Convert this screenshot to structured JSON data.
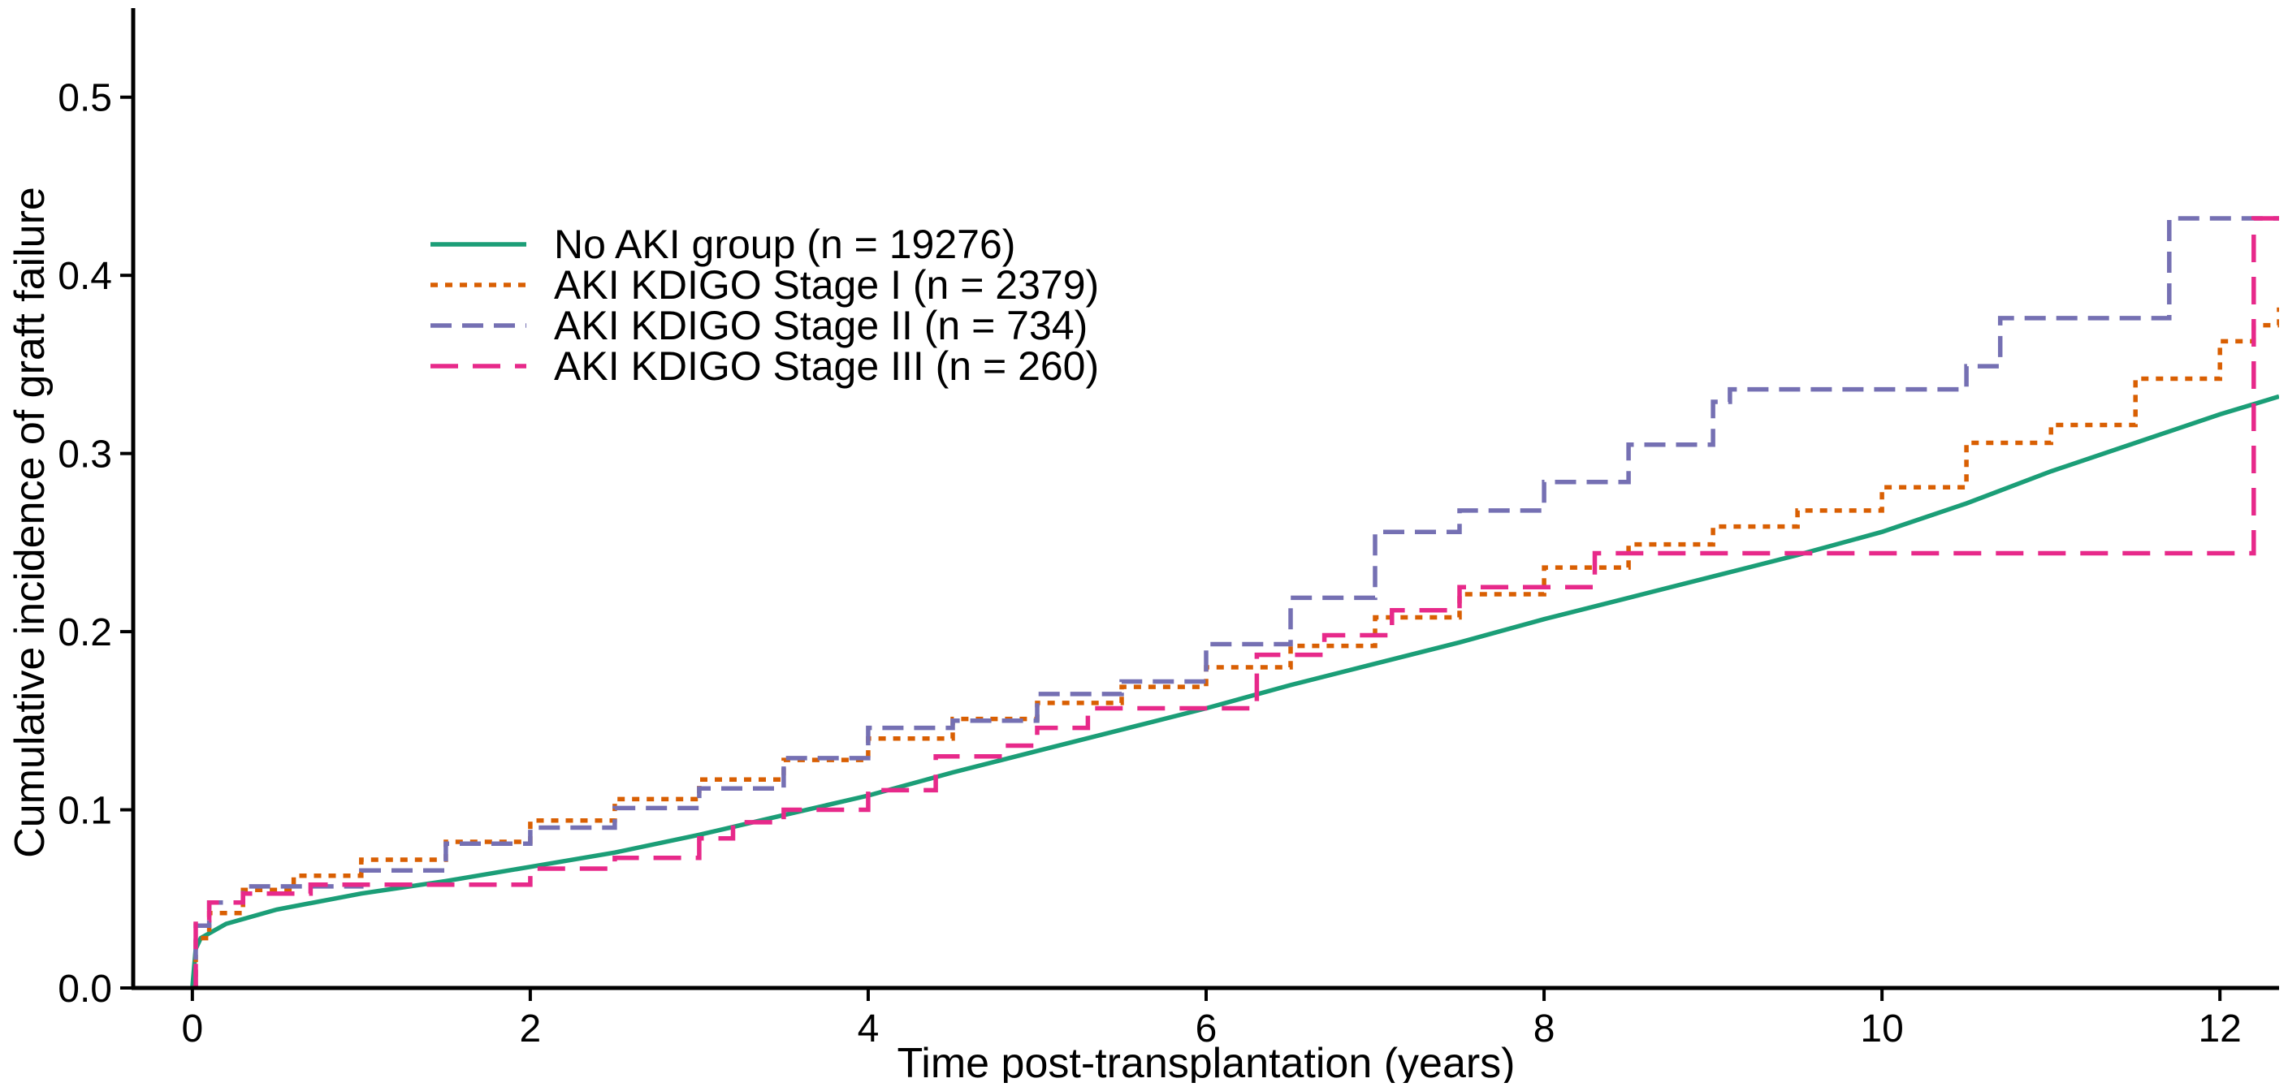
{
  "chart_data": {
    "type": "line",
    "title": "",
    "xlabel": "Time post-transplantation (years)",
    "ylabel": "Cumulative incidence of graft failure",
    "xlim": [
      -0.35,
      12.35
    ],
    "ylim": [
      0,
      0.55
    ],
    "xticks": [
      0,
      2,
      4,
      6,
      8,
      10,
      12
    ],
    "yticks": [
      0.0,
      0.1,
      0.2,
      0.3,
      0.4,
      0.5
    ],
    "xtick_labels": [
      "0",
      "2",
      "4",
      "6",
      "8",
      "10",
      "12"
    ],
    "ytick_labels": [
      "0.0",
      "0.1",
      "0.2",
      "0.3",
      "0.4",
      "0.5"
    ],
    "grid": false,
    "legend_position": "upper-left",
    "series": [
      {
        "name": "No AKI group (n = 19276)",
        "color": "#1b9e77",
        "dash": "solid",
        "step": false,
        "points": [
          [
            0,
            0
          ],
          [
            0.02,
            0.022
          ],
          [
            0.05,
            0.028
          ],
          [
            0.2,
            0.036
          ],
          [
            0.5,
            0.044
          ],
          [
            1.0,
            0.053
          ],
          [
            1.5,
            0.06
          ],
          [
            2.0,
            0.068
          ],
          [
            2.5,
            0.076
          ],
          [
            3.0,
            0.086
          ],
          [
            3.5,
            0.097
          ],
          [
            4.0,
            0.108
          ],
          [
            4.5,
            0.121
          ],
          [
            5.0,
            0.133
          ],
          [
            5.5,
            0.145
          ],
          [
            6.0,
            0.157
          ],
          [
            6.5,
            0.17
          ],
          [
            7.0,
            0.182
          ],
          [
            7.5,
            0.194
          ],
          [
            8.0,
            0.207
          ],
          [
            8.5,
            0.219
          ],
          [
            9.0,
            0.231
          ],
          [
            9.5,
            0.243
          ],
          [
            10.0,
            0.256
          ],
          [
            10.5,
            0.272
          ],
          [
            11.0,
            0.29
          ],
          [
            11.5,
            0.306
          ],
          [
            12.0,
            0.322
          ],
          [
            12.35,
            0.332
          ]
        ]
      },
      {
        "name": "AKI KDIGO Stage I (n = 2379)",
        "color": "#d95f02",
        "dash": "dotted",
        "step": true,
        "points": [
          [
            0,
            0
          ],
          [
            0.02,
            0.028
          ],
          [
            0.1,
            0.042
          ],
          [
            0.3,
            0.055
          ],
          [
            0.6,
            0.063
          ],
          [
            1.0,
            0.072
          ],
          [
            1.5,
            0.082
          ],
          [
            2.0,
            0.094
          ],
          [
            2.5,
            0.106
          ],
          [
            3.0,
            0.117
          ],
          [
            3.5,
            0.128
          ],
          [
            4.0,
            0.14
          ],
          [
            4.5,
            0.151
          ],
          [
            5.0,
            0.16
          ],
          [
            5.5,
            0.169
          ],
          [
            6.0,
            0.18
          ],
          [
            6.5,
            0.192
          ],
          [
            7.0,
            0.208
          ],
          [
            7.5,
            0.221
          ],
          [
            8.0,
            0.236
          ],
          [
            8.5,
            0.249
          ],
          [
            9.0,
            0.259
          ],
          [
            9.5,
            0.268
          ],
          [
            10.0,
            0.281
          ],
          [
            10.5,
            0.306
          ],
          [
            11.0,
            0.316
          ],
          [
            11.5,
            0.342
          ],
          [
            12.0,
            0.363
          ],
          [
            12.2,
            0.372
          ],
          [
            12.35,
            0.382
          ]
        ]
      },
      {
        "name": "AKI KDIGO Stage II (n = 734)",
        "color": "#7570b3",
        "dash": "dashed",
        "step": true,
        "points": [
          [
            0,
            0
          ],
          [
            0.02,
            0.035
          ],
          [
            0.1,
            0.048
          ],
          [
            0.3,
            0.057
          ],
          [
            1.0,
            0.066
          ],
          [
            1.5,
            0.081
          ],
          [
            2.0,
            0.09
          ],
          [
            2.5,
            0.101
          ],
          [
            3.0,
            0.112
          ],
          [
            3.5,
            0.129
          ],
          [
            4.0,
            0.146
          ],
          [
            4.5,
            0.15
          ],
          [
            5.0,
            0.165
          ],
          [
            5.5,
            0.172
          ],
          [
            6.0,
            0.193
          ],
          [
            6.5,
            0.219
          ],
          [
            7.0,
            0.256
          ],
          [
            7.5,
            0.268
          ],
          [
            8.0,
            0.284
          ],
          [
            8.5,
            0.305
          ],
          [
            9.0,
            0.329
          ],
          [
            9.1,
            0.336
          ],
          [
            10.5,
            0.349
          ],
          [
            10.7,
            0.376
          ],
          [
            11.7,
            0.432
          ],
          [
            12.35,
            0.432
          ]
        ]
      },
      {
        "name": "AKI KDIGO Stage III (n = 260)",
        "color": "#e7298a",
        "dash": "longdash",
        "step": true,
        "points": [
          [
            0,
            0
          ],
          [
            0.02,
            0.038
          ],
          [
            0.1,
            0.048
          ],
          [
            0.3,
            0.053
          ],
          [
            0.7,
            0.058
          ],
          [
            2.0,
            0.067
          ],
          [
            2.5,
            0.073
          ],
          [
            3.0,
            0.084
          ],
          [
            3.2,
            0.093
          ],
          [
            3.5,
            0.1
          ],
          [
            4.0,
            0.111
          ],
          [
            4.4,
            0.13
          ],
          [
            4.8,
            0.136
          ],
          [
            5.0,
            0.146
          ],
          [
            5.3,
            0.157
          ],
          [
            6.3,
            0.187
          ],
          [
            6.7,
            0.198
          ],
          [
            7.1,
            0.212
          ],
          [
            7.5,
            0.225
          ],
          [
            8.3,
            0.244
          ],
          [
            12.2,
            0.432
          ],
          [
            12.35,
            0.432
          ]
        ]
      }
    ]
  }
}
